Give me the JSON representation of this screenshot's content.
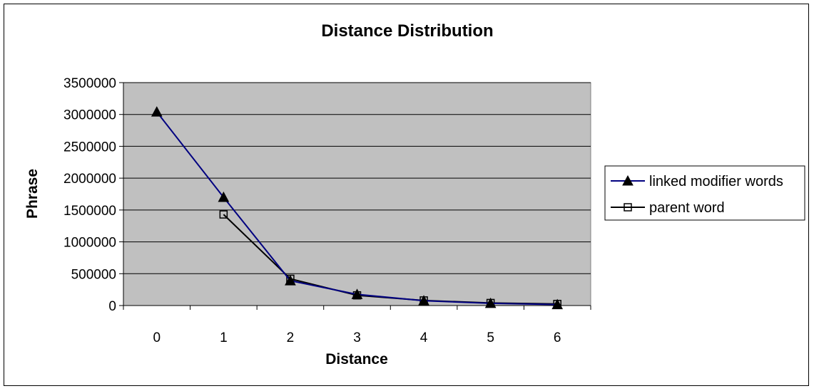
{
  "chart_data": {
    "type": "line",
    "title": "Distance Distribution",
    "xlabel": "Distance",
    "ylabel": "Phrase",
    "categories": [
      "0",
      "1",
      "2",
      "3",
      "4",
      "5",
      "6"
    ],
    "ylim": [
      0,
      3500000
    ],
    "yticks": [
      "0",
      "500000",
      "1000000",
      "1500000",
      "2000000",
      "2500000",
      "3000000",
      "3500000"
    ],
    "yticks_values": [
      0,
      500000,
      1000000,
      1500000,
      2000000,
      2500000,
      3000000,
      3500000
    ],
    "grid": true,
    "legend_position": "right",
    "series": [
      {
        "name": "linked modifier words",
        "marker": "triangle",
        "color": "#000080",
        "values": [
          3040000,
          1700000,
          390000,
          175000,
          75000,
          35000,
          15000
        ]
      },
      {
        "name": "parent word",
        "marker": "square",
        "color": "#000000",
        "values": [
          null,
          1430000,
          420000,
          160000,
          80000,
          40000,
          25000
        ]
      }
    ],
    "plot_background": "#c0c0c0"
  }
}
